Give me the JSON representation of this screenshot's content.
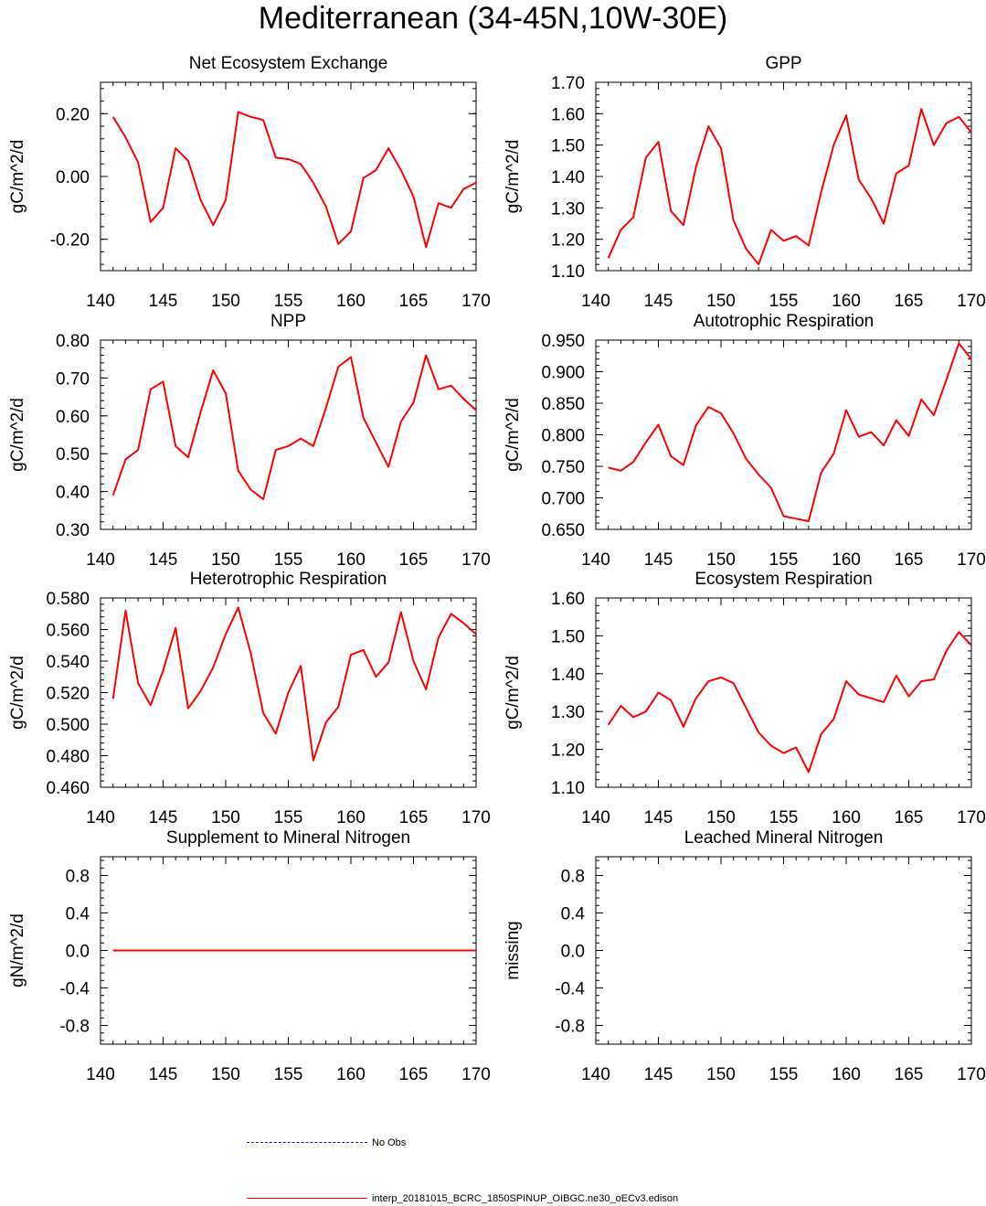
{
  "title": "Mediterranean (34-45N,10W-30E)",
  "colors": {
    "model": "#ff0000",
    "obs": "#0000ff",
    "axis": "#000000"
  },
  "legend": {
    "obs_label": "No Obs",
    "model_label": "interp_20181015_BCRC_1850SPINUP_OIBGC.ne30_oECv3.edison"
  },
  "chart_data": [
    {
      "type": "line",
      "title": "Net Ecosystem Exchange",
      "ylabel": "gC/m^2/d",
      "xlim": [
        140,
        170
      ],
      "ylim": [
        -0.3,
        0.3
      ],
      "xticks": [
        140,
        145,
        150,
        155,
        160,
        165,
        170
      ],
      "yticks": [
        -0.2,
        0.0,
        0.2
      ],
      "ytick_labels": [
        "-0.20",
        "0.00",
        "0.20"
      ],
      "x": [
        141,
        142,
        143,
        144,
        145,
        146,
        147,
        148,
        149,
        150,
        151,
        152,
        153,
        154,
        155,
        156,
        157,
        158,
        159,
        160,
        161,
        162,
        163,
        164,
        165,
        166,
        167,
        168,
        169,
        170
      ],
      "series": [
        {
          "name": "interp_20181015_BCRC_1850SPINUP_OIBGC.ne30_oECv3.edison",
          "values": [
            0.19,
            0.125,
            0.045,
            -0.145,
            -0.1,
            0.09,
            0.05,
            -0.075,
            -0.155,
            -0.075,
            0.205,
            0.19,
            0.18,
            0.06,
            0.055,
            0.04,
            -0.02,
            -0.095,
            -0.215,
            -0.175,
            -0.005,
            0.02,
            0.09,
            0.02,
            -0.065,
            -0.225,
            -0.085,
            -0.1,
            -0.04,
            -0.02
          ]
        }
      ]
    },
    {
      "type": "line",
      "title": "GPP",
      "ylabel": "gC/m^2/d",
      "xlim": [
        140,
        170
      ],
      "ylim": [
        1.1,
        1.7
      ],
      "xticks": [
        140,
        145,
        150,
        155,
        160,
        165,
        170
      ],
      "yticks": [
        1.1,
        1.2,
        1.3,
        1.4,
        1.5,
        1.6,
        1.7
      ],
      "ytick_labels": [
        "1.10",
        "1.20",
        "1.30",
        "1.40",
        "1.50",
        "1.60",
        "1.70"
      ],
      "x": [
        141,
        142,
        143,
        144,
        145,
        146,
        147,
        148,
        149,
        150,
        151,
        152,
        153,
        154,
        155,
        156,
        157,
        158,
        159,
        160,
        161,
        162,
        163,
        164,
        165,
        166,
        167,
        168,
        169,
        170
      ],
      "series": [
        {
          "name": "interp_20181015_BCRC_1850SPINUP_OIBGC.ne30_oECv3.edison",
          "values": [
            1.14,
            1.23,
            1.27,
            1.46,
            1.51,
            1.29,
            1.245,
            1.43,
            1.56,
            1.49,
            1.26,
            1.17,
            1.12,
            1.23,
            1.195,
            1.21,
            1.18,
            1.35,
            1.5,
            1.595,
            1.39,
            1.33,
            1.25,
            1.41,
            1.435,
            1.615,
            1.5,
            1.57,
            1.59,
            1.54
          ]
        }
      ]
    },
    {
      "type": "line",
      "title": "NPP",
      "ylabel": "gC/m^2/d",
      "xlim": [
        140,
        170
      ],
      "ylim": [
        0.3,
        0.8
      ],
      "xticks": [
        140,
        145,
        150,
        155,
        160,
        165,
        170
      ],
      "yticks": [
        0.3,
        0.4,
        0.5,
        0.6,
        0.7,
        0.8
      ],
      "ytick_labels": [
        "0.30",
        "0.40",
        "0.50",
        "0.60",
        "0.70",
        "0.80"
      ],
      "x": [
        141,
        142,
        143,
        144,
        145,
        146,
        147,
        148,
        149,
        150,
        151,
        152,
        153,
        154,
        155,
        156,
        157,
        158,
        159,
        160,
        161,
        162,
        163,
        164,
        165,
        166,
        167,
        168,
        169,
        170
      ],
      "series": [
        {
          "name": "interp_20181015_BCRC_1850SPINUP_OIBGC.ne30_oECv3.edison",
          "values": [
            0.39,
            0.485,
            0.51,
            0.67,
            0.69,
            0.52,
            0.49,
            0.61,
            0.72,
            0.66,
            0.455,
            0.405,
            0.38,
            0.51,
            0.52,
            0.54,
            0.52,
            0.62,
            0.73,
            0.755,
            0.595,
            0.53,
            0.465,
            0.585,
            0.635,
            0.76,
            0.67,
            0.68,
            0.645,
            0.615
          ]
        }
      ]
    },
    {
      "type": "line",
      "title": "Autotrophic Respiration",
      "ylabel": "gC/m^2/d",
      "xlim": [
        140,
        170
      ],
      "ylim": [
        0.65,
        0.95
      ],
      "xticks": [
        140,
        145,
        150,
        155,
        160,
        165,
        170
      ],
      "yticks": [
        0.65,
        0.7,
        0.75,
        0.8,
        0.85,
        0.9,
        0.95
      ],
      "ytick_labels": [
        "0.650",
        "0.700",
        "0.750",
        "0.800",
        "0.850",
        "0.900",
        "0.950"
      ],
      "x": [
        141,
        142,
        143,
        144,
        145,
        146,
        147,
        148,
        149,
        150,
        151,
        152,
        153,
        154,
        155,
        156,
        157,
        158,
        159,
        160,
        161,
        162,
        163,
        164,
        165,
        166,
        167,
        168,
        169,
        170
      ],
      "series": [
        {
          "name": "interp_20181015_BCRC_1850SPINUP_OIBGC.ne30_oECv3.edison",
          "values": [
            0.748,
            0.743,
            0.757,
            0.788,
            0.816,
            0.766,
            0.752,
            0.815,
            0.844,
            0.834,
            0.802,
            0.762,
            0.737,
            0.716,
            0.671,
            0.667,
            0.663,
            0.74,
            0.77,
            0.839,
            0.797,
            0.804,
            0.783,
            0.823,
            0.798,
            0.856,
            0.831,
            0.887,
            0.945,
            0.92
          ]
        }
      ]
    },
    {
      "type": "line",
      "title": "Heterotrophic Respiration",
      "ylabel": "gC/m^2/d",
      "xlim": [
        140,
        170
      ],
      "ylim": [
        0.46,
        0.58
      ],
      "xticks": [
        140,
        145,
        150,
        155,
        160,
        165,
        170
      ],
      "yticks": [
        0.46,
        0.48,
        0.5,
        0.52,
        0.54,
        0.56,
        0.58
      ],
      "ytick_labels": [
        "0.460",
        "0.480",
        "0.500",
        "0.520",
        "0.540",
        "0.560",
        "0.580"
      ],
      "x": [
        141,
        142,
        143,
        144,
        145,
        146,
        147,
        148,
        149,
        150,
        151,
        152,
        153,
        154,
        155,
        156,
        157,
        158,
        159,
        160,
        161,
        162,
        163,
        164,
        165,
        166,
        167,
        168,
        169,
        170
      ],
      "series": [
        {
          "name": "interp_20181015_BCRC_1850SPINUP_OIBGC.ne30_oECv3.edison",
          "values": [
            0.516,
            0.572,
            0.526,
            0.512,
            0.534,
            0.561,
            0.51,
            0.521,
            0.536,
            0.557,
            0.574,
            0.545,
            0.507,
            0.494,
            0.52,
            0.537,
            0.477,
            0.501,
            0.511,
            0.544,
            0.547,
            0.53,
            0.539,
            0.571,
            0.54,
            0.522,
            0.555,
            0.57,
            0.564,
            0.557
          ]
        }
      ]
    },
    {
      "type": "line",
      "title": "Ecosystem Respiration",
      "ylabel": "gC/m^2/d",
      "xlim": [
        140,
        170
      ],
      "ylim": [
        1.1,
        1.6
      ],
      "xticks": [
        140,
        145,
        150,
        155,
        160,
        165,
        170
      ],
      "yticks": [
        1.1,
        1.2,
        1.3,
        1.4,
        1.5,
        1.6
      ],
      "ytick_labels": [
        "1.10",
        "1.20",
        "1.30",
        "1.40",
        "1.50",
        "1.60"
      ],
      "x": [
        141,
        142,
        143,
        144,
        145,
        146,
        147,
        148,
        149,
        150,
        151,
        152,
        153,
        154,
        155,
        156,
        157,
        158,
        159,
        160,
        161,
        162,
        163,
        164,
        165,
        166,
        167,
        168,
        169,
        170
      ],
      "series": [
        {
          "name": "interp_20181015_BCRC_1850SPINUP_OIBGC.ne30_oECv3.edison",
          "values": [
            1.265,
            1.315,
            1.285,
            1.3,
            1.35,
            1.33,
            1.26,
            1.335,
            1.38,
            1.39,
            1.375,
            1.31,
            1.245,
            1.21,
            1.19,
            1.205,
            1.14,
            1.24,
            1.28,
            1.38,
            1.345,
            1.335,
            1.325,
            1.395,
            1.34,
            1.38,
            1.385,
            1.46,
            1.51,
            1.475
          ]
        }
      ]
    },
    {
      "type": "line",
      "title": "Supplement to Mineral Nitrogen",
      "ylabel": "gN/m^2/d",
      "xlim": [
        140,
        170
      ],
      "ylim": [
        -1.0,
        1.0
      ],
      "xticks": [
        140,
        145,
        150,
        155,
        160,
        165,
        170
      ],
      "yticks": [
        -0.8,
        -0.4,
        0.0,
        0.4,
        0.8
      ],
      "ytick_labels": [
        "-0.8",
        "-0.4",
        "0.0",
        "0.4",
        "0.8"
      ],
      "x": [
        141,
        142,
        143,
        144,
        145,
        146,
        147,
        148,
        149,
        150,
        151,
        152,
        153,
        154,
        155,
        156,
        157,
        158,
        159,
        160,
        161,
        162,
        163,
        164,
        165,
        166,
        167,
        168,
        169,
        170
      ],
      "series": [
        {
          "name": "interp_20181015_BCRC_1850SPINUP_OIBGC.ne30_oECv3.edison",
          "values": [
            0,
            0,
            0,
            0,
            0,
            0,
            0,
            0,
            0,
            0,
            0,
            0,
            0,
            0,
            0,
            0,
            0,
            0,
            0,
            0,
            0,
            0,
            0,
            0,
            0,
            0,
            0,
            0,
            0,
            0
          ]
        }
      ]
    },
    {
      "type": "line",
      "title": "Leached Mineral Nitrogen",
      "ylabel": "missing",
      "xlim": [
        140,
        170
      ],
      "ylim": [
        -1.0,
        1.0
      ],
      "xticks": [
        140,
        145,
        150,
        155,
        160,
        165,
        170
      ],
      "yticks": [
        -0.8,
        -0.4,
        0.0,
        0.4,
        0.8
      ],
      "ytick_labels": [
        "-0.8",
        "-0.4",
        "0.0",
        "0.4",
        "0.8"
      ],
      "x": [],
      "series": []
    }
  ]
}
